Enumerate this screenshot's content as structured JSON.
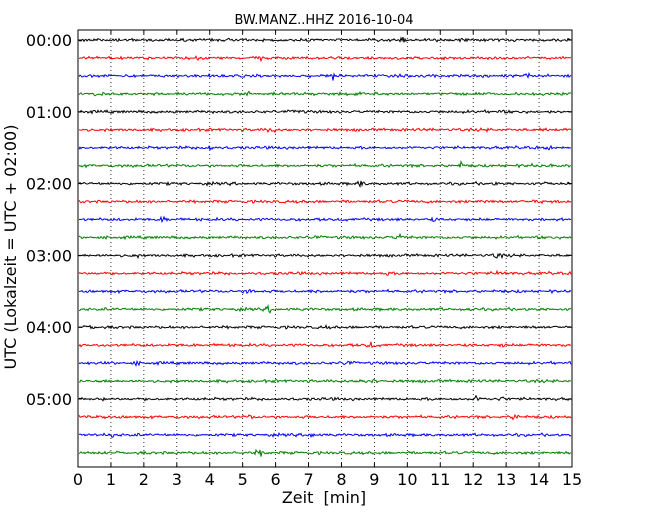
{
  "chart_data": {
    "type": "line",
    "title": "BW.MANZ..HHZ 2016-10-04",
    "xlabel": "Zeit  [min]",
    "ylabel": "UTC (Lokalzeit = UTC + 02:00)",
    "xlim": [
      0,
      15
    ],
    "x_ticks": [
      "0",
      "1",
      "2",
      "3",
      "4",
      "5",
      "6",
      "7",
      "8",
      "9",
      "10",
      "11",
      "12",
      "13",
      "14",
      "15"
    ],
    "y_tick_labels": [
      "00:00",
      "01:00",
      "02:00",
      "03:00",
      "04:00",
      "05:00"
    ],
    "traces_per_hour": 4,
    "trace_count": 24,
    "trace_colors": [
      "#000000",
      "#ff0000",
      "#0000ff",
      "#008000"
    ],
    "grid": "vertical dotted",
    "legend": "none"
  }
}
